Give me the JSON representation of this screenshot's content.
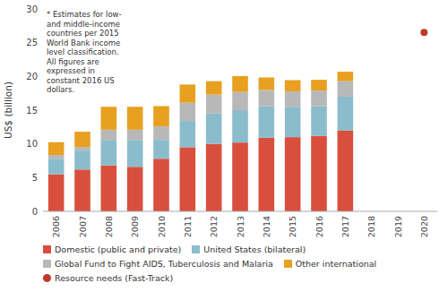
{
  "chart_data": {
    "type": "bar",
    "stacked": true,
    "grid": false,
    "legend": "bottom",
    "y_label": "US$ (billion)",
    "annotation": "* Estimates for low-\nand middle-income\ncountries per 2015\nWorld Bank income\nlevel classification.\nAll figures are\nexpressed in\nconstant 2016 US\ndollars.",
    "categories": [
      "2006",
      "2007",
      "2008",
      "2009",
      "2010",
      "2011",
      "2012",
      "2013",
      "2014",
      "2015",
      "2016",
      "2017",
      "2018",
      "2019",
      "2020"
    ],
    "ylim": [
      0,
      30
    ],
    "yticks": [
      0,
      5,
      10,
      15,
      20,
      25,
      30
    ],
    "series": [
      {
        "name": "Domestic (public and private)",
        "color": "#d94f3d",
        "values": [
          5.5,
          6.2,
          6.8,
          6.6,
          7.8,
          9.5,
          10.0,
          10.2,
          10.9,
          11.0,
          11.2,
          12.0,
          0,
          0,
          0
        ]
      },
      {
        "name": "United States (bilateral)",
        "color": "#8bbccc",
        "values": [
          2.3,
          2.8,
          3.8,
          3.9,
          2.8,
          3.9,
          4.5,
          4.8,
          4.7,
          4.5,
          4.4,
          5.0,
          0,
          0,
          0
        ]
      },
      {
        "name": "Global Fund to Fight AIDS, Tuberculosis and Malaria",
        "color": "#b8b8b8",
        "values": [
          0.55,
          0.55,
          1.5,
          1.6,
          2.0,
          2.7,
          2.8,
          2.7,
          2.4,
          2.3,
          2.3,
          2.3,
          0,
          0,
          0
        ]
      },
      {
        "name": "Other international",
        "color": "#e8a020",
        "values": [
          1.9,
          2.25,
          3.4,
          3.4,
          3.0,
          2.7,
          2.0,
          2.35,
          1.85,
          1.65,
          1.6,
          1.4,
          0,
          0,
          0
        ]
      },
      {
        "name": "Resource needs (Fast-Track)",
        "color": "#c0392b",
        "type": "scatter",
        "marker": "circle",
        "values": [
          null,
          null,
          null,
          null,
          null,
          null,
          null,
          null,
          null,
          null,
          null,
          null,
          null,
          null,
          26.5
        ]
      }
    ]
  }
}
